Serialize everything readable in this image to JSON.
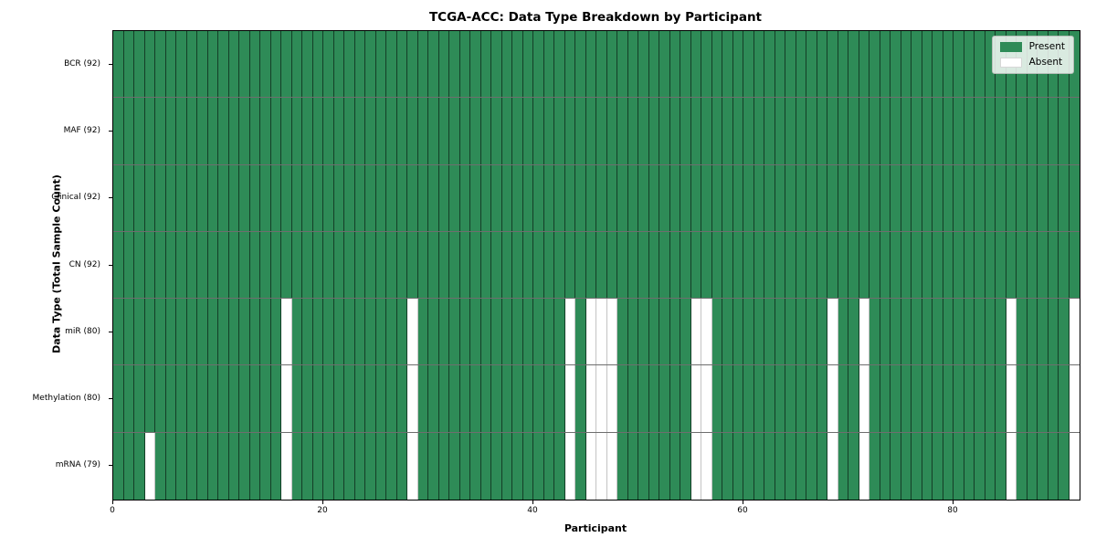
{
  "title": "TCGA-ACC: Data Type Breakdown by Participant",
  "xlabel": "Participant",
  "ylabel": "Data Type (Total Sample Count)",
  "legend": {
    "present_label": "Present",
    "absent_label": "Absent"
  },
  "colors": {
    "present_fill": "#2e8b57",
    "absent_fill": "#ffffff",
    "present_edge": "#1f3d2b",
    "absent_edge": "#c4c4c4",
    "spine": "#000000",
    "row_divider": "#6e6e6e",
    "legend_background": "#eef2ee"
  },
  "chart_data": {
    "type": "heatmap",
    "title": "TCGA-ACC: Data Type Breakdown by Participant",
    "xlabel": "Participant",
    "ylabel": "Data Type (Total Sample Count)",
    "legend_position": "upper right",
    "legend_entries": [
      "Present",
      "Absent"
    ],
    "grid": false,
    "n_participants": 92,
    "x_range": [
      0,
      92
    ],
    "x_tick_values": [
      0,
      20,
      40,
      60,
      80
    ],
    "x_tick_labels": [
      "0",
      "20",
      "40",
      "60",
      "80"
    ],
    "rows": [
      {
        "label": "BCR (92)",
        "data_type": "BCR",
        "present_count": 92,
        "absent_count": 0,
        "absent_participants": []
      },
      {
        "label": "MAF (92)",
        "data_type": "MAF",
        "present_count": 92,
        "absent_count": 0,
        "absent_participants": []
      },
      {
        "label": "Clinical (92)",
        "data_type": "Clinical",
        "present_count": 92,
        "absent_count": 0,
        "absent_participants": []
      },
      {
        "label": "CN (92)",
        "data_type": "CN",
        "present_count": 92,
        "absent_count": 0,
        "absent_participants": []
      },
      {
        "label": "miR (80)",
        "data_type": "miR",
        "present_count": 80,
        "absent_count": 12,
        "absent_participants": [
          16,
          28,
          43,
          45,
          46,
          47,
          55,
          56,
          68,
          71,
          85,
          91
        ]
      },
      {
        "label": "Methylation (80)",
        "data_type": "Methylation",
        "present_count": 80,
        "absent_count": 12,
        "absent_participants": [
          16,
          28,
          43,
          45,
          46,
          47,
          55,
          56,
          68,
          71,
          85,
          91
        ]
      },
      {
        "label": "mRNA (79)",
        "data_type": "mRNA",
        "present_count": 79,
        "absent_count": 13,
        "absent_participants": [
          3,
          16,
          28,
          43,
          45,
          46,
          47,
          55,
          56,
          68,
          71,
          85,
          91
        ]
      }
    ]
  }
}
